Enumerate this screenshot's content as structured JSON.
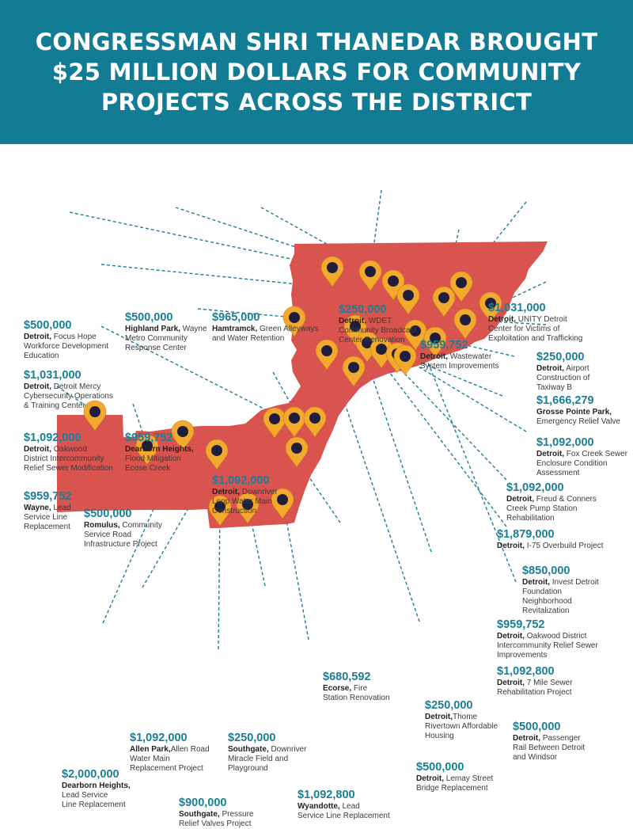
{
  "title": "CONGRESSMAN SHRI THANEDAR BROUGHT\n$25 MILLION DOLLARS FOR COMMUNITY\nPROJECTS ACROSS THE DISTRICT",
  "colors": {
    "header_bg": "#117c94",
    "district_fill": "#d9534f",
    "marker_fill": "#f2a92d",
    "marker_dot": "#1f1f3d",
    "leader_line": "#1b7e96",
    "amount_text": "#1b7e96"
  },
  "marker_icon": "map-pin-icon",
  "projects": [
    {
      "id": "p1",
      "amount": "$500,000",
      "place": "Detroit,",
      "desc": " Focus Hope\nWorkforce Development\nEducation"
    },
    {
      "id": "p2",
      "amount": "$500,000",
      "place": "Highland Park,",
      "desc": " Wayne\nMetro Community\nResponse Center"
    },
    {
      "id": "p3",
      "amount": "$965,000",
      "place": "Hamtramck,",
      "desc": " Green Alleyways\nand Water Retention"
    },
    {
      "id": "p4",
      "amount": "$250,000",
      "place": "Detroit,",
      "desc": " WDET\nCommunity Broadcast\nCenter Renovation"
    },
    {
      "id": "p5",
      "amount": "$1,031,000",
      "place": "Detroit,",
      "desc": " UNITY Detroit\nCenter for Victims of\nExploitation and Trafficking"
    },
    {
      "id": "p6",
      "amount": "$959,752",
      "place": "Detroit,",
      "desc": " Wastewater\nSystem Improvements"
    },
    {
      "id": "p7",
      "amount": "$250,000",
      "place": "Detroit,",
      "desc": " Airport\nConstruction of\nTaxiway B"
    },
    {
      "id": "p8",
      "amount": "$1,031,000",
      "place": "Detroit,",
      "desc": " Detroit Mercy\nCybersecurity Operations\n& Training Center"
    },
    {
      "id": "p9",
      "amount": "$1,666,279",
      "place": "Grosse Pointe Park,",
      "desc": "\nEmergency Relief Valve"
    },
    {
      "id": "p10",
      "amount": "$1,092,000",
      "place": "Detroit,",
      "desc": " Oakwood\nDistrict Intercommunity\nRelief Sewer Modification"
    },
    {
      "id": "p11",
      "amount": "$959,752",
      "place": "Dearborn Heights,",
      "desc": "\nFlood Mitigation\nEcose Creek"
    },
    {
      "id": "p12",
      "amount": "$1,092,000",
      "place": "Detroit,",
      "desc": " Fox Creek Sewer\nEnclosure Condition\nAssessment"
    },
    {
      "id": "p13",
      "amount": "$1,092,000",
      "place": "Detroit,",
      "desc": " Downriver\nLoop Water Main\nConstruction"
    },
    {
      "id": "p14",
      "amount": "$1,092,000",
      "place": "Detroit,",
      "desc": " Freud & Conners\nCreek Pump Station\nRehabilitation"
    },
    {
      "id": "p15",
      "amount": "$959,752",
      "place": "Wayne,",
      "desc": " Lead\nService Line\nReplacement"
    },
    {
      "id": "p16",
      "amount": "$500,000",
      "place": "Romulus,",
      "desc": " Community\nService Road\nInfrastructure Project"
    },
    {
      "id": "p17",
      "amount": "$1,879,000",
      "place": "Detroit,",
      "desc": " I-75 Overbuild Project"
    },
    {
      "id": "p18",
      "amount": "$850,000",
      "place": "Detroit,",
      "desc": " Invest Detroit\nFoundation\nNeighborhood\nRevitalization"
    },
    {
      "id": "p19",
      "amount": "$959,752",
      "place": "Detroit,",
      "desc": " Oakwood District\nIntercommunity Relief Sewer\nImprovements"
    },
    {
      "id": "p20",
      "amount": "$680,592",
      "place": "Ecorse,",
      "desc": " Fire\nStation Renovation"
    },
    {
      "id": "p21",
      "amount": "$1,092,800",
      "place": "Detroit,",
      "desc": " 7 Mile Sewer\nRehabilitation Project"
    },
    {
      "id": "p22",
      "amount": "$250,000",
      "place": "Detroit,",
      "desc": "Thome\nRivertown Affordable\nHousing"
    },
    {
      "id": "p23",
      "amount": "$500,000",
      "place": "Detroit,",
      "desc": " Passenger\nRail Between Detroit\nand Windsor"
    },
    {
      "id": "p24",
      "amount": "$1,092,000",
      "place": "Allen Park,",
      "desc": "Allen Road\nWater Main\nReplacement Project"
    },
    {
      "id": "p25",
      "amount": "$250,000",
      "place": "Southgate,",
      "desc": " Downriver\nMiracle Field and\nPlayground"
    },
    {
      "id": "p26",
      "amount": "$2,000,000",
      "place": "Dearborn Heights,",
      "desc": "\nLead Service\nLine Replacement"
    },
    {
      "id": "p27",
      "amount": "$500,000",
      "place": "Detroit,",
      "desc": " Lemay Street\nBridge Replacement"
    },
    {
      "id": "p28",
      "amount": "$900,000",
      "place": "Southgate,",
      "desc": " Pressure\nRelief Valves Project"
    },
    {
      "id": "p29",
      "amount": "$1,092,800",
      "place": "Wyandotte,",
      "desc": " Lead\nService Line Replacement"
    }
  ]
}
